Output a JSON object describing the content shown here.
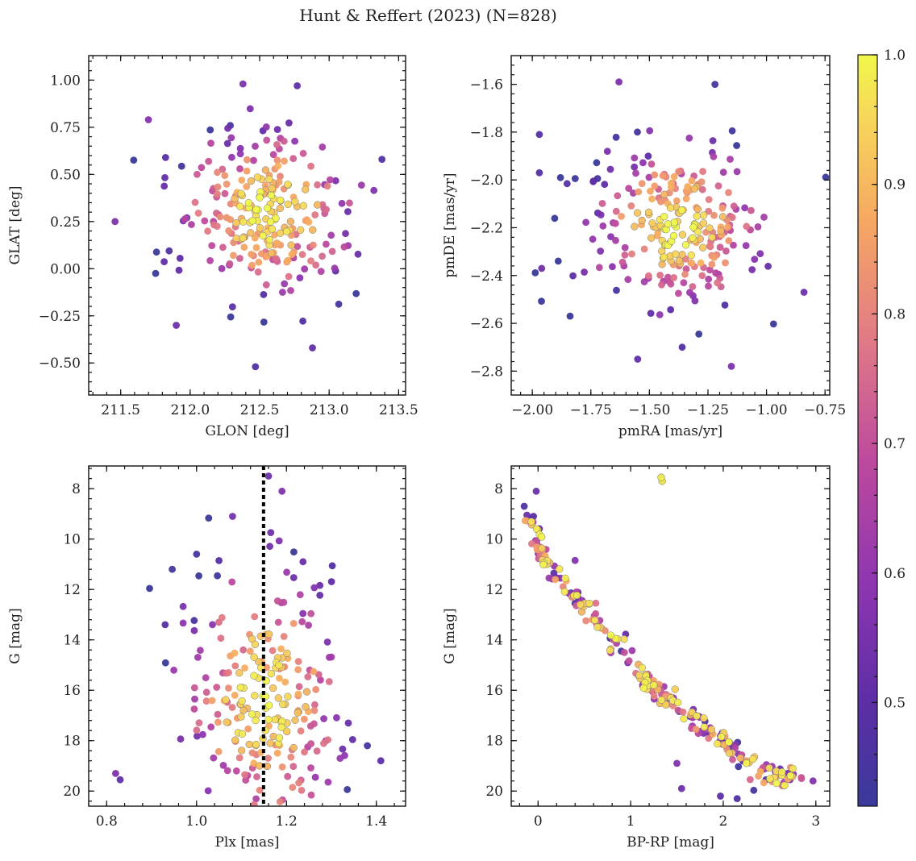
{
  "chart_data": {
    "figure_title": "Hunt & Reffert (2023) (N=828)",
    "n_points": 828,
    "colorbar": {
      "range": [
        0.42,
        1.0
      ],
      "ticks": [
        0.5,
        0.6,
        0.7,
        0.8,
        0.9,
        1.0
      ],
      "tick_labels": [
        "0.5",
        "0.6",
        "0.7",
        "0.8",
        "0.9",
        "1.0"
      ],
      "colormap": "plasma",
      "colors": [
        "#3a3a9a",
        "#5d2ea6",
        "#8f36b0",
        "#bd4a9e",
        "#e07a86",
        "#f6a862",
        "#f7d85a",
        "#f0f84a"
      ]
    },
    "panels": [
      {
        "id": "glon-glat",
        "type": "scatter",
        "xlabel": "GLON [deg]",
        "ylabel": "GLAT [deg]",
        "xlim": [
          211.27,
          213.55
        ],
        "ylim": [
          -0.67,
          1.13
        ],
        "xticks": [
          211.5,
          212.0,
          212.5,
          213.0,
          213.5
        ],
        "xtick_labels": [
          "211.5",
          "212.0",
          "212.5",
          "213.0",
          "213.5"
        ],
        "yticks": [
          -0.5,
          -0.25,
          0.0,
          0.25,
          0.5,
          0.75,
          1.0
        ],
        "ytick_labels": [
          "−0.50",
          "−0.25",
          "0.00",
          "0.25",
          "0.50",
          "0.75",
          "1.00"
        ],
        "inverted_y": false,
        "center": [
          212.55,
          0.3
        ],
        "spread": [
          0.32,
          0.22
        ],
        "outliers": [
          [
            211.46,
            0.25
          ],
          [
            212.47,
            -0.52
          ],
          [
            212.38,
            0.98
          ],
          [
            212.77,
            0.97
          ],
          [
            211.9,
            -0.3
          ],
          [
            212.88,
            -0.42
          ],
          [
            213.38,
            0.58
          ],
          [
            211.7,
            0.79
          ]
        ],
        "vline": null
      },
      {
        "id": "pmra-pmde",
        "type": "scatter",
        "xlabel": "pmRA [mas/yr]",
        "ylabel": "pmDE [mas/yr]",
        "xlim": [
          -2.09,
          -0.73
        ],
        "ylim": [
          -2.9,
          -1.48
        ],
        "xticks": [
          -2.0,
          -1.75,
          -1.5,
          -1.25,
          -1.0,
          -0.75
        ],
        "xtick_labels": [
          "−2.00",
          "−1.75",
          "−1.50",
          "−1.25",
          "−1.00",
          "−0.75"
        ],
        "yticks": [
          -2.8,
          -2.6,
          -2.4,
          -2.2,
          -2.0,
          -1.8,
          -1.6
        ],
        "ytick_labels": [
          "−2.8",
          "−2.6",
          "−2.4",
          "−2.2",
          "−2.0",
          "−1.8",
          "−1.6"
        ],
        "inverted_y": false,
        "center": [
          -1.38,
          -2.2
        ],
        "spread": [
          0.18,
          0.17
        ],
        "outliers": [
          [
            -1.97,
            -1.81
          ],
          [
            -1.97,
            -1.97
          ],
          [
            -1.63,
            -1.59
          ],
          [
            -1.22,
            -1.6
          ],
          [
            -1.15,
            -2.78
          ],
          [
            -1.55,
            -2.75
          ],
          [
            -0.84,
            -2.47
          ],
          [
            -1.96,
            -2.37
          ],
          [
            -1.36,
            -2.7
          ]
        ],
        "vline": null
      },
      {
        "id": "plx-g",
        "type": "scatter",
        "xlabel": "Plx [mas]",
        "ylabel": "G [mag]",
        "xlim": [
          0.76,
          1.465
        ],
        "ylim": [
          20.6,
          7.1
        ],
        "xticks": [
          0.8,
          1.0,
          1.2,
          1.4
        ],
        "xtick_labels": [
          "0.8",
          "1.0",
          "1.2",
          "1.4"
        ],
        "yticks": [
          8,
          10,
          12,
          14,
          16,
          18,
          20
        ],
        "ytick_labels": [
          "8",
          "10",
          "12",
          "14",
          "16",
          "18",
          "20"
        ],
        "inverted_y": true,
        "center": [
          1.15,
          16.5
        ],
        "spread": [
          0.09,
          2.6
        ],
        "outliers": [
          [
            0.82,
            19.3
          ],
          [
            0.83,
            19.55
          ],
          [
            1.16,
            7.5
          ],
          [
            1.19,
            8.1
          ],
          [
            1.08,
            9.1
          ],
          [
            1.41,
            18.8
          ],
          [
            1.38,
            18.2
          ],
          [
            0.93,
            13.4
          ],
          [
            1.0,
            10.6
          ]
        ],
        "vline": 1.149
      },
      {
        "id": "bprp-g",
        "type": "scatter",
        "xlabel": "BP-RP [mag]",
        "ylabel": "G [mag]",
        "xlim": [
          -0.29,
          3.15
        ],
        "ylim": [
          20.6,
          7.1
        ],
        "xticks": [
          0,
          1,
          2,
          3
        ],
        "xtick_labels": [
          "0",
          "1",
          "2",
          "3"
        ],
        "yticks": [
          8,
          10,
          12,
          14,
          16,
          18,
          20
        ],
        "ytick_labels": [
          "8",
          "10",
          "12",
          "14",
          "16",
          "18",
          "20"
        ],
        "inverted_y": true,
        "sequence": [
          [
            -0.1,
            9.0
          ],
          [
            0.0,
            10.3
          ],
          [
            0.15,
            11.2
          ],
          [
            0.4,
            12.3
          ],
          [
            0.7,
            13.4
          ],
          [
            1.0,
            14.9
          ],
          [
            1.3,
            16.1
          ],
          [
            1.6,
            16.9
          ],
          [
            1.9,
            17.7
          ],
          [
            2.2,
            18.6
          ],
          [
            2.5,
            19.3
          ],
          [
            2.9,
            19.6
          ]
        ],
        "outliers": [
          [
            1.33,
            7.55
          ],
          [
            1.34,
            7.7
          ],
          [
            -0.02,
            8.1
          ],
          [
            -0.15,
            8.7
          ],
          [
            -0.05,
            9.1
          ],
          [
            -0.12,
            9.05
          ],
          [
            1.55,
            19.9
          ],
          [
            1.97,
            20.2
          ],
          [
            2.15,
            20.3
          ],
          [
            2.33,
            19.97
          ],
          [
            2.97,
            19.6
          ],
          [
            1.5,
            18.9
          ],
          [
            0.4,
            10.85
          ]
        ],
        "vline": null
      }
    ]
  }
}
